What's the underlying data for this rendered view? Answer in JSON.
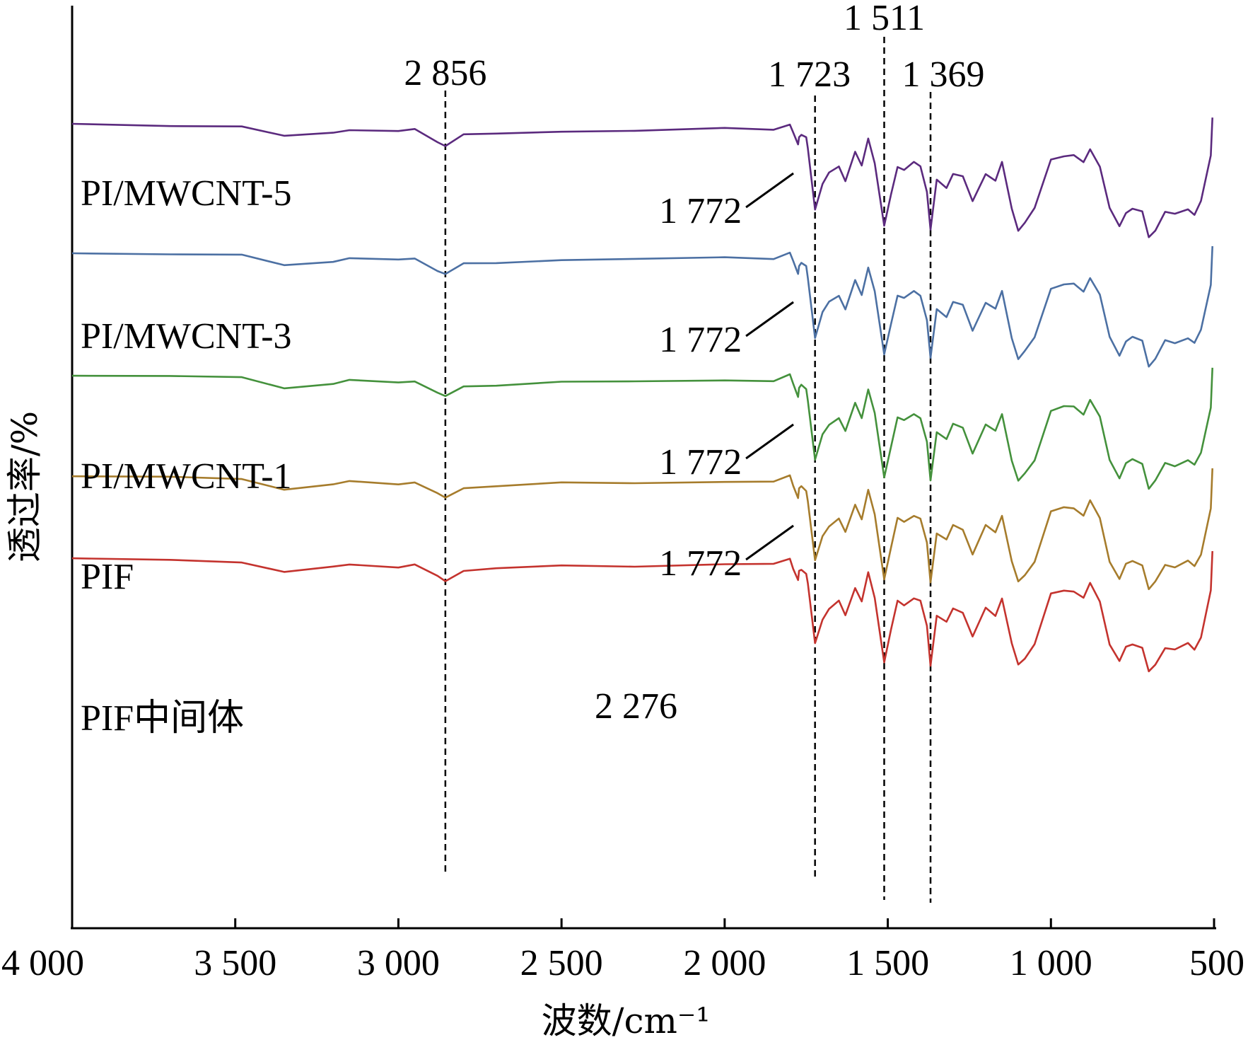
{
  "chart_data": {
    "type": "line",
    "xlabel": "波数/cm⁻¹",
    "ylabel": "透过率/%",
    "xlim": [
      4000,
      500
    ],
    "x_reversed": true,
    "x_ticks": [
      {
        "value": 4000,
        "label": "4 000"
      },
      {
        "value": 3500,
        "label": "3 500"
      },
      {
        "value": 3000,
        "label": "3 000"
      },
      {
        "value": 2500,
        "label": "2 500"
      },
      {
        "value": 2000,
        "label": "2 000"
      },
      {
        "value": 1500,
        "label": "1 500"
      },
      {
        "value": 1000,
        "label": "1 000"
      },
      {
        "value": 500,
        "label": "500"
      }
    ],
    "y_ticks_shown": false,
    "grid": false,
    "legend": "none",
    "reference_lines": [
      {
        "x": 2856,
        "label": "2 856"
      },
      {
        "x": 1723,
        "label": "1 723"
      },
      {
        "x": 1511,
        "label": "1 511"
      },
      {
        "x": 1369,
        "label": "1 369"
      }
    ],
    "annotations": [
      {
        "series": "PI/MWCNT-5",
        "x": 1772,
        "label": "1 772"
      },
      {
        "series": "PI/MWCNT-3",
        "x": 1772,
        "label": "1 772"
      },
      {
        "series": "PI/MWCNT-1",
        "x": 1772,
        "label": "1 772"
      },
      {
        "series": "PIF",
        "x": 1772,
        "label": "1 772"
      },
      {
        "series": "PIF中间体",
        "x": 2276,
        "label": "2 276"
      }
    ],
    "series_shape": {
      "x": [
        4000,
        3700,
        3480,
        3350,
        3200,
        3150,
        3000,
        2950,
        2880,
        2856,
        2800,
        2700,
        2500,
        2276,
        2000,
        1850,
        1800,
        1790,
        1775,
        1772,
        1765,
        1750,
        1745,
        1723,
        1700,
        1680,
        1650,
        1630,
        1600,
        1580,
        1560,
        1540,
        1511,
        1490,
        1470,
        1450,
        1420,
        1400,
        1380,
        1369,
        1350,
        1320,
        1300,
        1270,
        1240,
        1200,
        1170,
        1150,
        1120,
        1100,
        1080,
        1050,
        1000,
        960,
        930,
        900,
        880,
        850,
        820,
        790,
        770,
        750,
        720,
        700,
        680,
        650,
        620,
        580,
        560,
        540,
        510,
        505
      ],
      "y": [
        0,
        -2,
        -4,
        -18,
        -12,
        -8,
        -11,
        -8,
        -25,
        -31,
        -16,
        -14,
        -10,
        -10,
        -7,
        -8,
        0,
        -13,
        -30,
        -18,
        -15,
        -20,
        -35,
        -120,
        -85,
        -70,
        -60,
        -80,
        -40,
        -60,
        -20,
        -55,
        -145,
        -100,
        -60,
        -65,
        -55,
        -60,
        -95,
        -150,
        -80,
        -90,
        -70,
        -75,
        -110,
        -70,
        -80,
        -55,
        -120,
        -150,
        -140,
        -120,
        -50,
        -45,
        -45,
        -55,
        -35,
        -60,
        -120,
        -145,
        -125,
        -120,
        -125,
        -160,
        -150,
        -125,
        -128,
        -120,
        -128,
        -110,
        -45,
        10
      ]
    },
    "series": [
      {
        "name": "PI/MWCNT-5",
        "color": "#5b2a7e",
        "offset": 175
      },
      {
        "name": "PI/MWCNT-3",
        "color": "#4c70a3",
        "offset": 357
      },
      {
        "name": "PI/MWCNT-1",
        "color": "#44913c",
        "offset": 530
      },
      {
        "name": "PIF",
        "color": "#a67c2c",
        "offset": 673
      },
      {
        "name": "PIF中间体",
        "color": "#c4332e",
        "offset": 790
      }
    ]
  }
}
